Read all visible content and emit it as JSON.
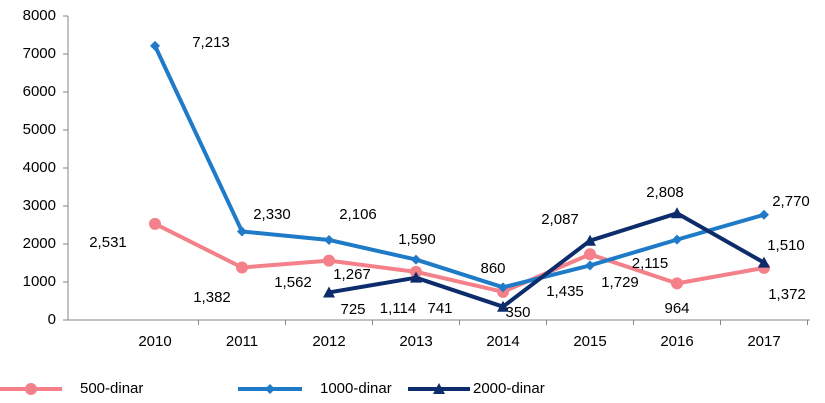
{
  "chart_data": {
    "type": "line",
    "categories": [
      "2010",
      "2011",
      "2012",
      "2013",
      "2014",
      "2015",
      "2016",
      "2017"
    ],
    "series": [
      {
        "name": "500-dinar",
        "color": "#f4808a",
        "marker": "circle",
        "values": [
          2531,
          1382,
          1562,
          1267,
          741,
          1729,
          964,
          1372
        ],
        "value_labels": [
          "2,531",
          "1,382",
          "1,562",
          "1,267",
          "741",
          "1,729",
          "964",
          "1,372"
        ]
      },
      {
        "name": "1000-dinar",
        "color": "#1f7bc8",
        "marker": "diamond",
        "values": [
          7213,
          2330,
          2106,
          1590,
          860,
          1435,
          2115,
          2770
        ],
        "value_labels": [
          "7,213",
          "2,330",
          "2,106",
          "1,590",
          "860",
          "1,435",
          "2,115",
          "2,770"
        ]
      },
      {
        "name": "2000-dinar",
        "color": "#0d2c6c",
        "marker": "triangle",
        "values": [
          null,
          null,
          725,
          1114,
          350,
          2087,
          2808,
          1510
        ],
        "value_labels": [
          null,
          null,
          "725",
          "1,114",
          "350",
          "2,087",
          "2,808",
          "1,510"
        ]
      }
    ],
    "ylim": [
      0,
      8000
    ],
    "yticks": [
      0,
      1000,
      2000,
      3000,
      4000,
      5000,
      6000,
      7000,
      8000
    ],
    "grid": false,
    "legend": "bottom"
  }
}
